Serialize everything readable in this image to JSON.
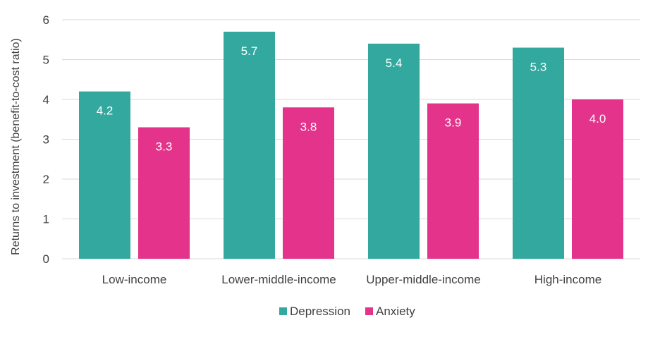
{
  "chart_data": {
    "type": "bar",
    "title": "",
    "xlabel": "",
    "ylabel": "Returns to investment (benefit-to-cost ratio)",
    "categories": [
      "Low-income",
      "Lower-middle-income",
      "Upper-middle-income",
      "High-income"
    ],
    "series": [
      {
        "name": "Depression",
        "color": "#33a89e",
        "values": [
          4.2,
          5.7,
          5.4,
          5.3
        ],
        "labels": [
          "4.2",
          "5.7",
          "5.4",
          "5.3"
        ]
      },
      {
        "name": "Anxiety",
        "color": "#e3338a",
        "values": [
          3.3,
          3.8,
          3.9,
          4.0
        ],
        "labels": [
          "3.3",
          "3.8",
          "3.9",
          "4.0"
        ]
      }
    ],
    "ylim": [
      0,
      6
    ],
    "yticks": [
      "0",
      "1",
      "2",
      "3",
      "4",
      "5",
      "6"
    ],
    "grid": true,
    "legend": "bottom"
  }
}
